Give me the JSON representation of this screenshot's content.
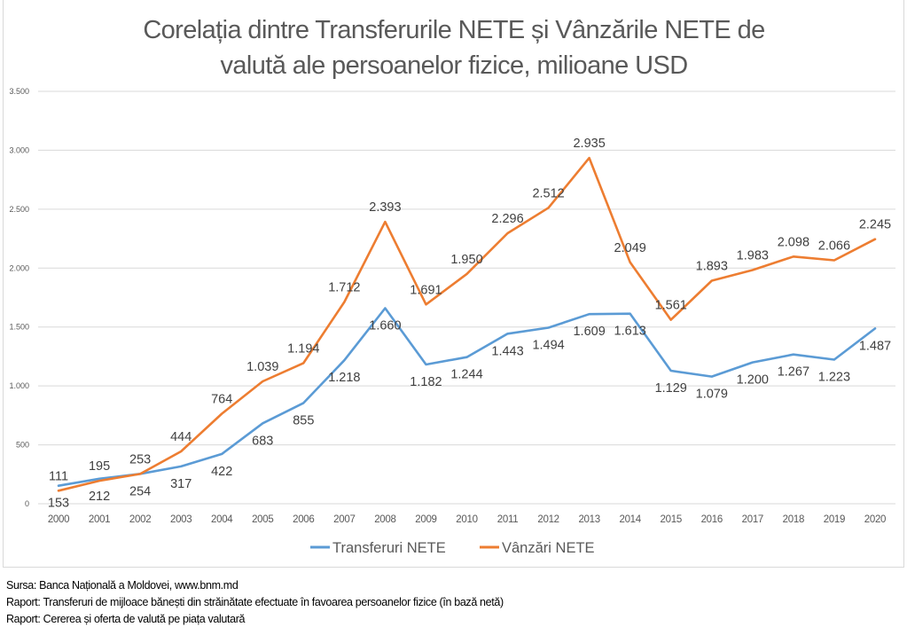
{
  "chart_data": {
    "type": "line",
    "title": "Corelația dintre Transferurile NETE și Vânzările NETE de valută ale persoanelor fizice, milioane USD",
    "title_lines": [
      "Corelația dintre Transferurile NETE și Vânzările NETE de",
      "valută ale persoanelor fizice, milioane USD"
    ],
    "xlabel": "",
    "ylabel": "",
    "ylim": [
      0,
      3500
    ],
    "yticks": [
      0,
      500,
      1000,
      1500,
      2000,
      2500,
      3000,
      3500
    ],
    "ytick_labels": [
      "0",
      "500",
      "1.000",
      "1.500",
      "2.000",
      "2.500",
      "3.000",
      "3.500"
    ],
    "grid": true,
    "legend_position": "bottom",
    "categories": [
      "2000",
      "2001",
      "2002",
      "2003",
      "2004",
      "2005",
      "2006",
      "2007",
      "2008",
      "2009",
      "2010",
      "2011",
      "2012",
      "2013",
      "2014",
      "2015",
      "2016",
      "2017",
      "2018",
      "2019",
      "2020"
    ],
    "series": [
      {
        "name": "Transferuri NETE",
        "color": "#5B9BD5",
        "label_side": "below",
        "values": [
          153,
          212,
          254,
          317,
          422,
          683,
          855,
          1218,
          1660,
          1182,
          1244,
          1443,
          1494,
          1609,
          1613,
          1129,
          1079,
          1200,
          1267,
          1223,
          1487
        ],
        "labels": [
          "153",
          "212",
          "254",
          "317",
          "422",
          "683",
          "855",
          "1.218",
          "1.660",
          "1.182",
          "1.244",
          "1.443",
          "1.494",
          "1.609",
          "1.613",
          "1.129",
          "1.079",
          "1.200",
          "1.267",
          "1.223",
          "1.487"
        ]
      },
      {
        "name": "Vânzări NETE",
        "color": "#ED7D31",
        "label_side": "above",
        "values": [
          111,
          195,
          253,
          444,
          764,
          1039,
          1194,
          1712,
          2393,
          1691,
          1950,
          2296,
          2512,
          2935,
          2049,
          1561,
          1893,
          1983,
          2098,
          2066,
          2245
        ],
        "labels": [
          "111",
          "195",
          "253",
          "444",
          "764",
          "1.039",
          "1.194",
          "1.712",
          "2.393",
          "1.691",
          "1.950",
          "2.296",
          "2.512",
          "2.935",
          "2.049",
          "1.561",
          "1.893",
          "1.983",
          "2.098",
          "2.066",
          "2.245"
        ]
      }
    ]
  },
  "source_notes": [
    "Sursa: Banca Națională a Moldovei, www.bnm.md",
    "Raport: Transferuri de mijloace bănești din străinătate efectuate în favoarea persoanelor fizice (în bază netă)",
    "Raport: Cererea și oferta de valută pe piața valutară"
  ]
}
